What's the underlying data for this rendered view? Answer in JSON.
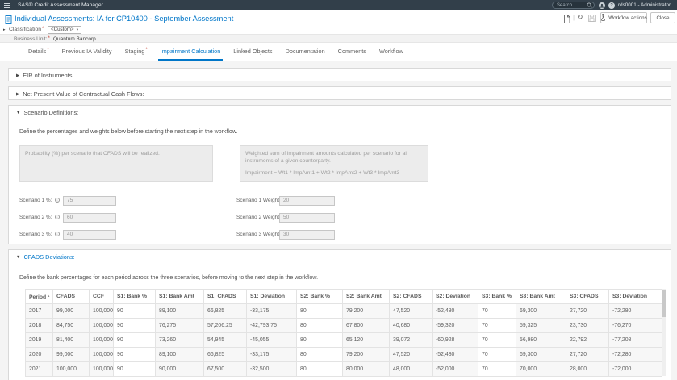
{
  "colors": {
    "topbar": "#323f4a",
    "accent_blue": "#0076c8",
    "required_red": "#c0392b"
  },
  "topbar": {
    "app_title": "SAS® Credit Assessment Manager",
    "search_placeholder": "Search",
    "user": "rds0001 - Administrator"
  },
  "header": {
    "title": "Individual Assessments: IA for CP10400 - September Assessment",
    "workflow_actions_label": "Workflow actions",
    "close_label": "Close"
  },
  "classification": {
    "label": "Classification",
    "value": "<Custom>",
    "business_unit_label": "Business Unit:",
    "business_unit_value": "Quantum Bancorp"
  },
  "tabs": [
    {
      "label": "Details",
      "required": true,
      "active": false
    },
    {
      "label": "Previous IA Validity",
      "required": false,
      "active": false
    },
    {
      "label": "Staging",
      "required": true,
      "active": false
    },
    {
      "label": "Impairment Calculation",
      "required": false,
      "active": true
    },
    {
      "label": "Linked Objects",
      "required": false,
      "active": false
    },
    {
      "label": "Documentation",
      "required": false,
      "active": false
    },
    {
      "label": "Comments",
      "required": false,
      "active": false
    },
    {
      "label": "Workflow",
      "required": false,
      "active": false
    }
  ],
  "sections": {
    "eir": {
      "title": "EIR of Instruments:"
    },
    "npv": {
      "title": "Net Present Value of Contractual Cash Flows:"
    },
    "scenario": {
      "title": "Scenario Definitions:",
      "description": "Define the percentages and weights below before starting the next step in the workflow.",
      "prob_box": "Probability (%) per scenario that CFADS will be realized.",
      "weight_box_line1": "Weighted sum of impairment amounts calculated per scenario for all instruments of a given counterparty.",
      "weight_box_line2": "Impairment = Wt1 * ImpAmt1 + Wt2 * ImpAmt2 + Wt3 * ImpAmt3",
      "percent_fields": [
        {
          "label": "Scenario 1 %:",
          "value": "75"
        },
        {
          "label": "Scenario 2 %:",
          "value": "60"
        },
        {
          "label": "Scenario 3 %:",
          "value": "40"
        }
      ],
      "weight_fields": [
        {
          "label": "Scenario 1 Weight:",
          "value": "20"
        },
        {
          "label": "Scenario 2 Weight:",
          "value": "50"
        },
        {
          "label": "Scenario 3 Weight:",
          "value": "30"
        }
      ]
    },
    "cfads": {
      "title": "CFADS Deviations:",
      "description": "Define the bank percentages for each period across the three scenarios, before moving to the next step in the workflow.",
      "table": {
        "sort_column_index": 0,
        "editable_columns": [
          3,
          7,
          11
        ],
        "columns": [
          "Period",
          "CFADS",
          "CCF",
          "S1: Bank %",
          "S1: Bank Amt",
          "S1: CFADS",
          "S1: Deviation",
          "S2: Bank %",
          "S2: Bank Amt",
          "S2: CFADS",
          "S2: Deviation",
          "S3: Bank %",
          "S3: Bank Amt",
          "S3: CFADS",
          "S3: Deviation"
        ],
        "rows": [
          [
            "2017",
            "99,000",
            "100,000",
            "90",
            "89,100",
            "66,825",
            "-33,175",
            "80",
            "79,200",
            "47,520",
            "-52,480",
            "70",
            "69,300",
            "27,720",
            "-72,280"
          ],
          [
            "2018",
            "84,750",
            "100,000",
            "90",
            "76,275",
            "57,206.25",
            "-42,793.75",
            "80",
            "67,800",
            "40,680",
            "-59,320",
            "70",
            "59,325",
            "23,730",
            "-76,270"
          ],
          [
            "2019",
            "81,400",
            "100,000",
            "90",
            "73,260",
            "54,945",
            "-45,055",
            "80",
            "65,120",
            "39,072",
            "-60,928",
            "70",
            "56,980",
            "22,792",
            "-77,208"
          ],
          [
            "2020",
            "99,000",
            "100,000",
            "90",
            "89,100",
            "66,825",
            "-33,175",
            "80",
            "79,200",
            "47,520",
            "-52,480",
            "70",
            "69,300",
            "27,720",
            "-72,280"
          ],
          [
            "2021",
            "100,000",
            "100,000",
            "90",
            "90,000",
            "67,500",
            "-32,500",
            "80",
            "80,000",
            "48,000",
            "-52,000",
            "70",
            "70,000",
            "28,000",
            "-72,000"
          ]
        ]
      }
    }
  }
}
